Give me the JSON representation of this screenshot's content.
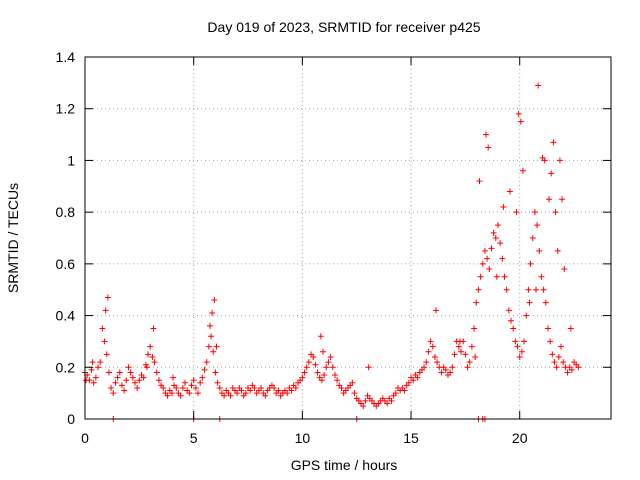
{
  "chart_data": {
    "type": "scatter",
    "title": "Day 019 of 2023, SRMTID for receiver p425",
    "xlabel": "GPS time / hours",
    "ylabel": "SRMTID / TECUs",
    "xlim": [
      0,
      24.2
    ],
    "ylim": [
      0,
      1.4
    ],
    "xticks": [
      0,
      5,
      10,
      15,
      20
    ],
    "xtick_labels": [
      "0",
      "5",
      "10",
      "15",
      "20"
    ],
    "yticks": [
      0,
      0.2,
      0.4,
      0.6,
      0.8,
      1.0,
      1.2,
      1.4
    ],
    "ytick_labels": [
      "0",
      "0.2",
      "0.4",
      "0.6",
      "0.8",
      "1",
      "1.2",
      "1.4"
    ],
    "grid": true,
    "marker": "+",
    "color": "#ff0000",
    "series": [
      {
        "name": "SRMTID",
        "x": [
          0.0,
          0.1,
          0.2,
          0.3,
          0.4,
          0.5,
          0.6,
          0.7,
          0.8,
          0.9,
          1.0,
          1.1,
          1.2,
          1.3,
          1.4,
          1.5,
          1.6,
          1.7,
          1.8,
          1.9,
          2.0,
          2.1,
          2.2,
          2.3,
          2.4,
          2.5,
          2.6,
          2.7,
          2.8,
          2.9,
          3.0,
          3.1,
          3.2,
          3.3,
          3.4,
          3.5,
          3.6,
          3.7,
          3.8,
          3.9,
          4.0,
          4.1,
          4.2,
          4.3,
          4.4,
          4.5,
          4.6,
          4.7,
          4.8,
          4.9,
          5.0,
          5.1,
          5.2,
          5.3,
          5.4,
          5.5,
          5.6,
          5.7,
          5.8,
          5.9,
          6.0,
          6.1,
          6.2,
          6.3,
          6.4,
          6.5,
          6.6,
          6.7,
          6.8,
          6.9,
          7.0,
          7.1,
          7.2,
          7.3,
          7.4,
          7.5,
          7.6,
          7.7,
          7.8,
          7.9,
          8.0,
          8.1,
          8.2,
          8.3,
          8.4,
          8.5,
          8.6,
          8.7,
          8.8,
          8.9,
          9.0,
          9.1,
          9.2,
          9.3,
          9.4,
          9.5,
          9.6,
          9.7,
          9.8,
          9.9,
          10.0,
          10.1,
          10.2,
          10.3,
          10.4,
          10.5,
          10.6,
          10.7,
          10.8,
          10.9,
          11.0,
          11.1,
          11.2,
          11.3,
          11.4,
          11.5,
          11.6,
          11.7,
          11.8,
          11.9,
          12.0,
          12.1,
          12.2,
          12.3,
          12.4,
          12.5,
          12.6,
          12.7,
          12.8,
          12.9,
          13.0,
          13.1,
          13.2,
          13.3,
          13.4,
          13.5,
          13.6,
          13.7,
          13.8,
          13.9,
          14.0,
          14.1,
          14.2,
          14.3,
          14.4,
          14.5,
          14.6,
          14.7,
          14.8,
          14.9,
          15.0,
          15.1,
          15.2,
          15.3,
          15.4,
          15.5,
          15.6,
          15.7,
          15.8,
          15.9,
          16.0,
          16.1,
          16.2,
          16.3,
          16.4,
          16.5,
          16.6,
          16.7,
          16.8,
          16.9,
          17.0,
          17.1,
          17.2,
          17.3,
          17.4,
          17.5,
          17.6,
          17.7,
          17.8,
          17.9,
          18.0,
          18.1,
          18.2,
          18.3,
          18.4,
          18.5,
          18.6,
          18.7,
          18.8,
          18.9,
          19.0,
          19.1,
          19.2,
          19.3,
          19.4,
          19.5,
          19.6,
          19.7,
          19.8,
          19.9,
          20.0,
          20.1,
          20.2,
          20.3,
          20.4,
          20.5,
          20.6,
          20.7,
          20.8,
          20.9,
          21.0,
          21.1,
          21.2,
          21.3,
          21.4,
          21.5,
          21.6,
          21.7,
          21.8,
          21.9,
          22.0,
          22.1,
          22.2,
          22.3,
          22.4,
          22.5,
          22.6,
          22.7,
          0.05,
          0.35,
          0.95,
          1.05,
          2.85,
          3.15,
          4.05,
          5.75,
          5.85,
          5.95,
          6.05,
          10.85,
          10.95,
          13.05,
          16.15,
          17.25,
          17.95,
          18.15,
          18.45,
          18.55,
          18.95,
          19.25,
          19.55,
          19.85,
          19.95,
          20.05,
          20.15,
          20.45,
          20.75,
          20.85,
          21.05,
          21.15,
          21.35,
          21.45,
          21.55,
          21.65,
          21.75,
          21.85,
          21.95,
          22.05,
          22.35,
          1.3,
          5.0,
          6.2,
          12.5,
          18.1,
          18.3,
          18.4
        ],
        "y": [
          0.18,
          0.17,
          0.15,
          0.19,
          0.14,
          0.16,
          0.2,
          0.22,
          0.35,
          0.3,
          0.25,
          0.18,
          0.12,
          0.1,
          0.14,
          0.16,
          0.18,
          0.13,
          0.11,
          0.15,
          0.2,
          0.18,
          0.16,
          0.14,
          0.12,
          0.15,
          0.17,
          0.16,
          0.21,
          0.25,
          0.28,
          0.24,
          0.22,
          0.18,
          0.15,
          0.13,
          0.12,
          0.1,
          0.09,
          0.11,
          0.1,
          0.13,
          0.12,
          0.1,
          0.09,
          0.12,
          0.14,
          0.11,
          0.1,
          0.13,
          0.15,
          0.12,
          0.1,
          0.14,
          0.16,
          0.19,
          0.22,
          0.28,
          0.32,
          0.26,
          0.18,
          0.14,
          0.12,
          0.1,
          0.09,
          0.11,
          0.1,
          0.09,
          0.12,
          0.11,
          0.1,
          0.12,
          0.11,
          0.09,
          0.1,
          0.12,
          0.11,
          0.13,
          0.12,
          0.1,
          0.11,
          0.12,
          0.1,
          0.09,
          0.11,
          0.12,
          0.13,
          0.12,
          0.1,
          0.11,
          0.09,
          0.1,
          0.11,
          0.1,
          0.12,
          0.11,
          0.13,
          0.12,
          0.14,
          0.15,
          0.16,
          0.18,
          0.2,
          0.22,
          0.25,
          0.24,
          0.21,
          0.18,
          0.16,
          0.15,
          0.17,
          0.2,
          0.22,
          0.24,
          0.2,
          0.17,
          0.15,
          0.13,
          0.12,
          0.1,
          0.11,
          0.12,
          0.13,
          0.14,
          0.1,
          0.08,
          0.07,
          0.06,
          0.05,
          0.07,
          0.09,
          0.08,
          0.07,
          0.06,
          0.05,
          0.06,
          0.07,
          0.08,
          0.07,
          0.06,
          0.08,
          0.07,
          0.09,
          0.1,
          0.12,
          0.11,
          0.12,
          0.11,
          0.13,
          0.14,
          0.16,
          0.15,
          0.17,
          0.16,
          0.18,
          0.19,
          0.2,
          0.22,
          0.26,
          0.3,
          0.28,
          0.24,
          0.22,
          0.2,
          0.18,
          0.2,
          0.19,
          0.17,
          0.18,
          0.2,
          0.25,
          0.3,
          0.28,
          0.26,
          0.3,
          0.25,
          0.2,
          0.22,
          0.28,
          0.35,
          0.45,
          0.5,
          0.55,
          0.6,
          0.65,
          0.62,
          0.58,
          0.66,
          0.72,
          0.7,
          0.75,
          0.68,
          0.62,
          0.55,
          0.5,
          0.42,
          0.38,
          0.35,
          0.3,
          0.28,
          0.24,
          0.26,
          0.3,
          0.4,
          0.5,
          0.6,
          0.7,
          0.8,
          0.75,
          0.65,
          0.55,
          0.5,
          0.45,
          0.35,
          0.3,
          0.25,
          0.22,
          0.2,
          0.24,
          0.28,
          0.22,
          0.2,
          0.18,
          0.2,
          0.19,
          0.22,
          0.21,
          0.2,
          0.15,
          0.22,
          0.42,
          0.47,
          0.2,
          0.35,
          0.16,
          0.36,
          0.41,
          0.46,
          0.28,
          0.32,
          0.26,
          0.2,
          0.42,
          0.3,
          0.24,
          0.92,
          1.1,
          1.05,
          0.55,
          0.82,
          0.88,
          0.8,
          1.18,
          1.15,
          0.96,
          0.45,
          0.5,
          1.29,
          1.01,
          1.0,
          0.85,
          0.95,
          1.07,
          0.8,
          0.65,
          1.0,
          0.85,
          0.58,
          0.35,
          0.0,
          0.0,
          0.0,
          0.0,
          0.0,
          0.0,
          0.0
        ]
      }
    ]
  }
}
